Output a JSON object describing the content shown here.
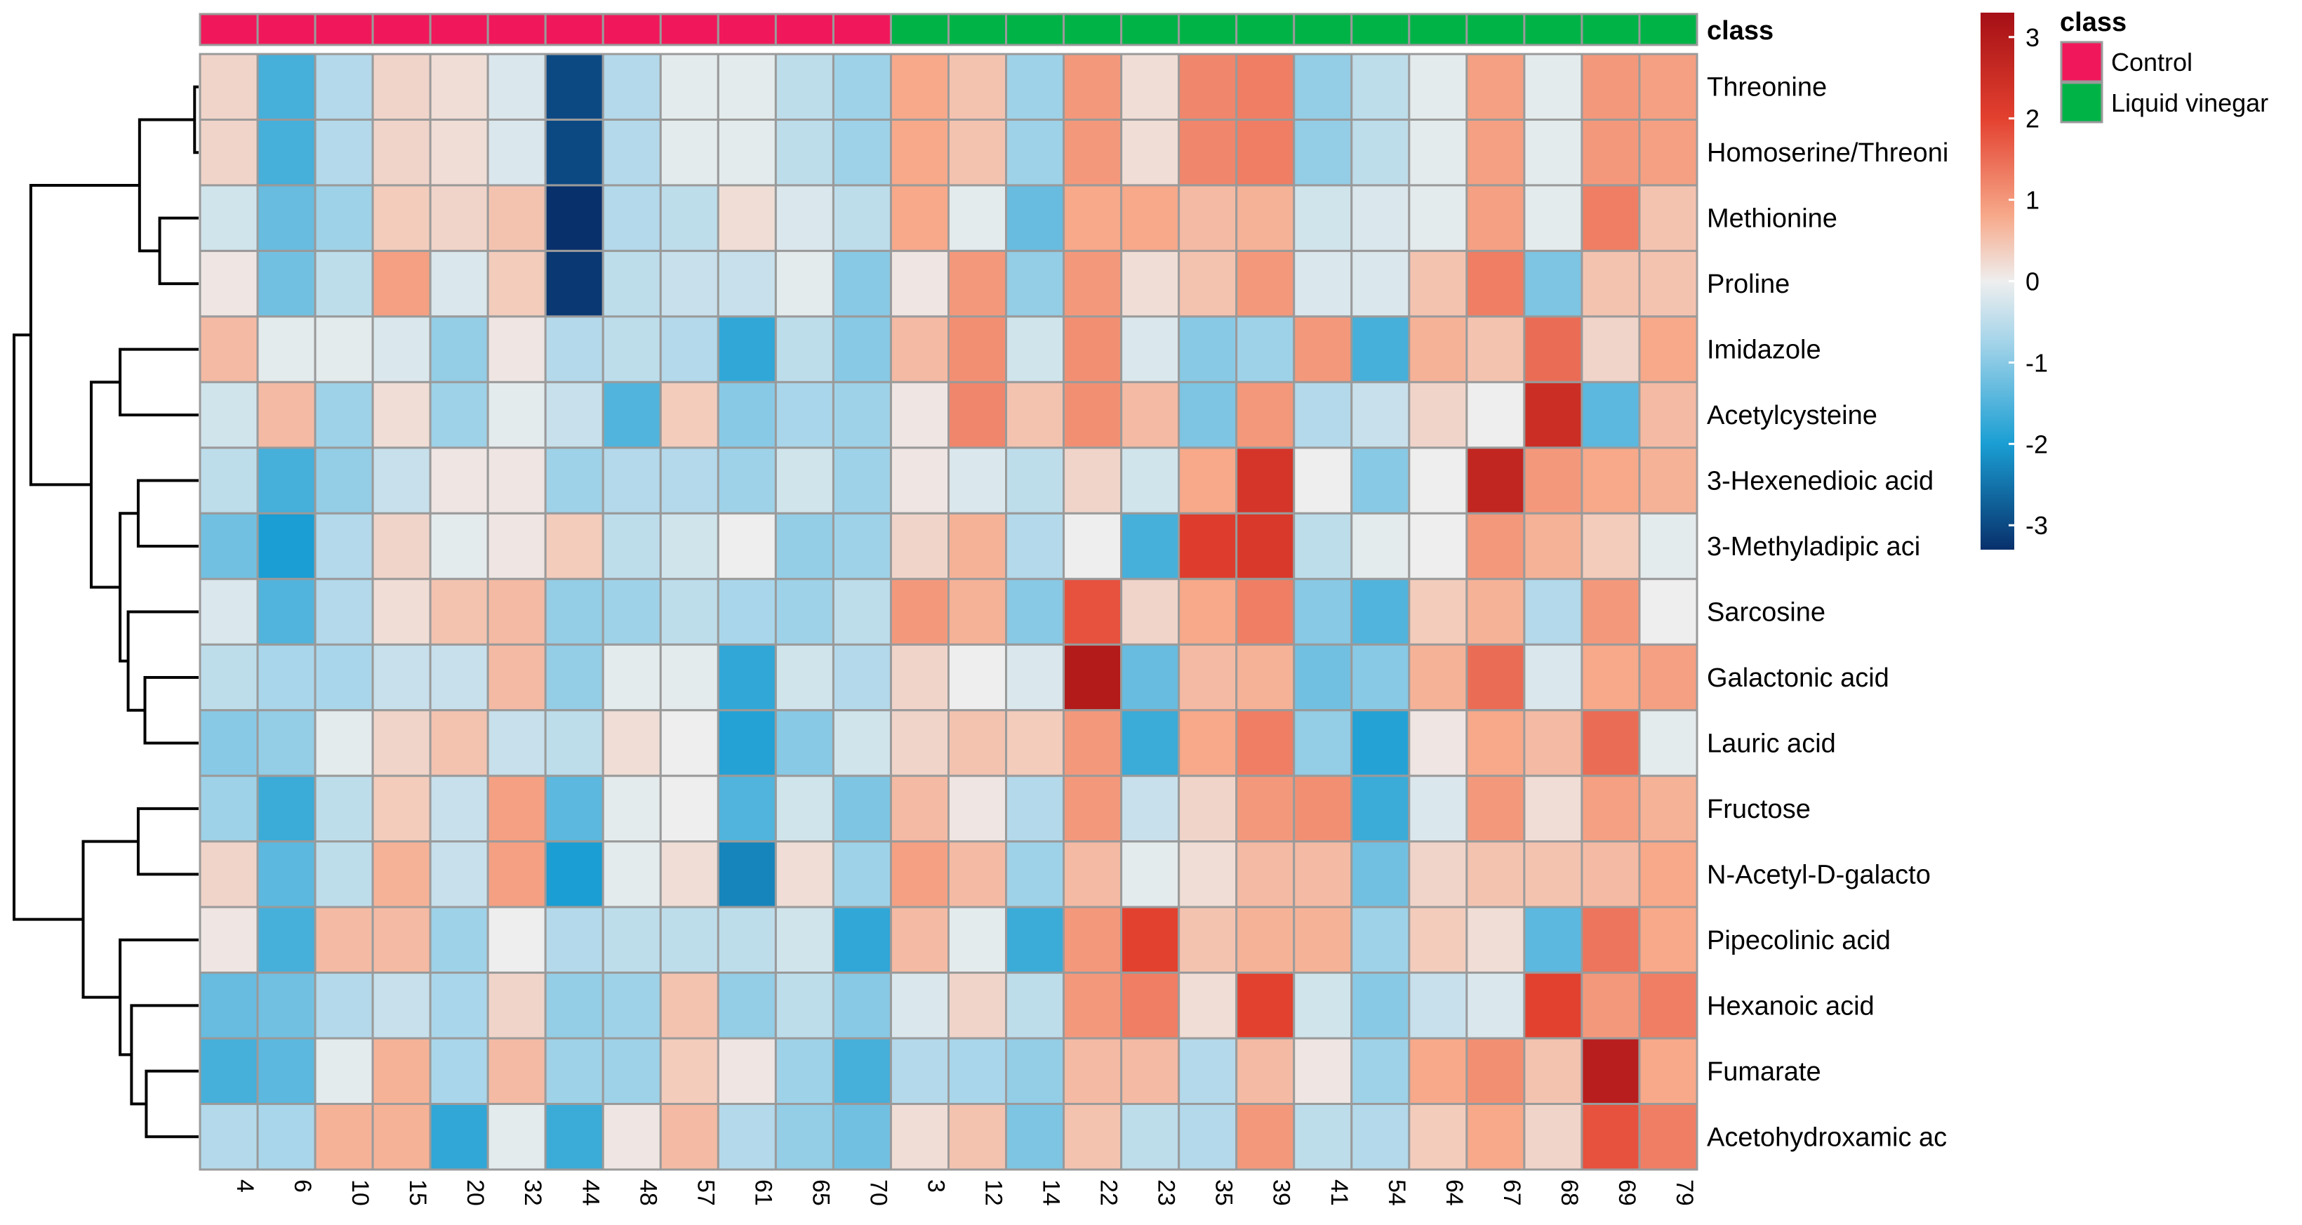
{
  "chart_data": {
    "type": "heatmap",
    "columns": [
      "4",
      "6",
      "10",
      "15",
      "20",
      "32",
      "44",
      "48",
      "57",
      "61",
      "65",
      "70",
      "3",
      "12",
      "14",
      "22",
      "23",
      "35",
      "39",
      "41",
      "54",
      "64",
      "67",
      "68",
      "69",
      "79"
    ],
    "column_classes": [
      "Control",
      "Control",
      "Control",
      "Control",
      "Control",
      "Control",
      "Control",
      "Control",
      "Control",
      "Control",
      "Control",
      "Control",
      "Liquid vinegar",
      "Liquid vinegar",
      "Liquid vinegar",
      "Liquid vinegar",
      "Liquid vinegar",
      "Liquid vinegar",
      "Liquid vinegar",
      "Liquid vinegar",
      "Liquid vinegar",
      "Liquid vinegar",
      "Liquid vinegar",
      "Liquid vinegar",
      "Liquid vinegar",
      "Liquid vinegar"
    ],
    "rows": [
      "Threonine",
      "Homoserine/Threoni",
      "Methionine",
      "Proline",
      "Imidazole",
      "Acetylcysteine",
      "3-Hexenedioic acid",
      "3-Methyladipic aci",
      "Sarcosine",
      "Galactonic acid",
      "Lauric acid",
      "Fructose",
      "N-Acetyl-D-galacto",
      "Pipecolinic acid",
      "Hexanoic acid",
      "Fumarate",
      "Acetohydroxamic ac"
    ],
    "values": [
      [
        0.3,
        -1.6,
        -0.6,
        0.3,
        0.2,
        -0.2,
        -3.0,
        -0.6,
        -0.1,
        -0.1,
        -0.5,
        -0.8,
        0.8,
        0.5,
        -0.8,
        1.0,
        0.2,
        1.2,
        1.3,
        -0.9,
        -0.5,
        -0.1,
        0.9,
        -0.1,
        1.0,
        0.9
      ],
      [
        0.3,
        -1.6,
        -0.6,
        0.3,
        0.2,
        -0.2,
        -3.0,
        -0.6,
        -0.1,
        -0.1,
        -0.5,
        -0.8,
        0.8,
        0.5,
        -0.8,
        1.0,
        0.2,
        1.2,
        1.3,
        -0.9,
        -0.5,
        -0.1,
        0.9,
        -0.1,
        1.0,
        0.9
      ],
      [
        -0.3,
        -1.3,
        -0.8,
        0.4,
        0.3,
        0.5,
        -3.3,
        -0.6,
        -0.5,
        0.2,
        -0.2,
        -0.5,
        0.8,
        -0.1,
        -1.3,
        0.8,
        0.8,
        0.6,
        0.7,
        -0.3,
        -0.2,
        -0.1,
        0.9,
        -0.1,
        1.3,
        0.5
      ],
      [
        0.1,
        -1.2,
        -0.5,
        0.9,
        -0.2,
        0.4,
        -3.2,
        -0.5,
        -0.4,
        -0.4,
        -0.1,
        -1.0,
        0.1,
        1.0,
        -0.9,
        1.0,
        0.2,
        0.5,
        1.0,
        -0.2,
        -0.2,
        0.5,
        1.3,
        -1.1,
        0.5,
        0.5
      ],
      [
        0.6,
        -0.1,
        -0.1,
        -0.2,
        -0.9,
        0.1,
        -0.6,
        -0.5,
        -0.6,
        -1.8,
        -0.5,
        -1.0,
        0.6,
        1.1,
        -0.3,
        1.1,
        -0.2,
        -1.0,
        -0.8,
        1.0,
        -1.6,
        0.7,
        0.5,
        1.5,
        0.3,
        0.8
      ],
      [
        -0.3,
        0.6,
        -0.8,
        0.2,
        -0.8,
        -0.1,
        -0.4,
        -1.5,
        0.4,
        -1.0,
        -0.7,
        -0.8,
        0.1,
        1.2,
        0.5,
        1.1,
        0.6,
        -1.1,
        1.0,
        -0.6,
        -0.4,
        0.3,
        0.0,
        2.5,
        -1.4,
        0.6
      ],
      [
        -0.5,
        -1.6,
        -0.9,
        -0.4,
        0.1,
        0.1,
        -0.8,
        -0.6,
        -0.6,
        -0.8,
        -0.3,
        -0.8,
        0.1,
        -0.2,
        -0.5,
        0.3,
        -0.3,
        0.8,
        2.3,
        0.0,
        -1.0,
        0.0,
        2.7,
        1.0,
        0.8,
        0.7
      ],
      [
        -1.2,
        -2.0,
        -0.6,
        0.3,
        -0.1,
        0.1,
        0.4,
        -0.5,
        -0.3,
        0.0,
        -0.9,
        -0.8,
        0.3,
        0.7,
        -0.6,
        0.0,
        -1.6,
        2.1,
        2.2,
        -0.5,
        -0.1,
        0.0,
        1.0,
        0.7,
        0.4,
        -0.1
      ],
      [
        -0.2,
        -1.5,
        -0.6,
        0.2,
        0.5,
        0.6,
        -0.9,
        -0.8,
        -0.5,
        -0.7,
        -0.8,
        -0.5,
        1.0,
        0.7,
        -1.0,
        1.8,
        0.3,
        0.8,
        1.3,
        -1.0,
        -1.5,
        0.4,
        0.7,
        -0.6,
        1.0,
        0.0
      ],
      [
        -0.5,
        -0.7,
        -0.7,
        -0.4,
        -0.4,
        0.6,
        -0.9,
        -0.1,
        -0.1,
        -1.8,
        -0.3,
        -0.6,
        0.3,
        0.0,
        -0.2,
        3.0,
        -1.3,
        0.6,
        0.7,
        -1.2,
        -1.0,
        0.7,
        1.5,
        -0.2,
        0.8,
        0.9
      ],
      [
        -1.0,
        -0.9,
        -0.1,
        0.3,
        0.5,
        -0.4,
        -0.5,
        0.2,
        0.0,
        -1.9,
        -1.0,
        -0.3,
        0.3,
        0.5,
        0.4,
        1.0,
        -1.7,
        0.8,
        1.3,
        -0.9,
        -1.9,
        0.1,
        0.8,
        0.6,
        1.5,
        -0.1
      ],
      [
        -0.8,
        -1.7,
        -0.5,
        0.4,
        -0.4,
        0.9,
        -1.4,
        -0.1,
        0.0,
        -1.5,
        -0.3,
        -1.1,
        0.6,
        0.1,
        -0.6,
        1.0,
        -0.4,
        0.3,
        1.0,
        1.1,
        -1.7,
        -0.2,
        1.0,
        0.2,
        0.9,
        0.7
      ],
      [
        0.3,
        -1.4,
        -0.5,
        0.7,
        -0.4,
        0.9,
        -2.0,
        -0.1,
        0.2,
        -2.3,
        0.2,
        -0.8,
        0.9,
        0.6,
        -0.8,
        0.6,
        -0.1,
        0.2,
        0.6,
        0.6,
        -1.2,
        0.3,
        0.5,
        0.5,
        0.6,
        0.8
      ],
      [
        0.1,
        -1.6,
        0.6,
        0.6,
        -0.8,
        0.0,
        -0.6,
        -0.5,
        -0.5,
        -0.5,
        -0.3,
        -1.8,
        0.6,
        -0.1,
        -1.7,
        1.0,
        2.0,
        0.5,
        0.7,
        0.7,
        -0.8,
        0.4,
        0.2,
        -1.4,
        1.4,
        0.8
      ],
      [
        -1.3,
        -1.2,
        -0.6,
        -0.4,
        -0.7,
        0.3,
        -0.9,
        -0.8,
        0.5,
        -0.9,
        -0.5,
        -1.0,
        -0.2,
        0.3,
        -0.5,
        1.0,
        1.3,
        0.2,
        2.0,
        -0.3,
        -1.0,
        -0.4,
        -0.2,
        2.0,
        1.0,
        1.3
      ],
      [
        -1.6,
        -1.4,
        -0.1,
        0.7,
        -0.7,
        0.6,
        -0.8,
        -0.8,
        0.4,
        0.1,
        -0.8,
        -1.6,
        -0.6,
        -0.7,
        -0.9,
        0.6,
        0.6,
        -0.6,
        0.6,
        0.1,
        -0.8,
        0.8,
        1.1,
        0.5,
        2.9,
        0.8
      ],
      [
        -0.6,
        -0.7,
        0.7,
        0.7,
        -1.8,
        -0.1,
        -1.7,
        0.1,
        0.6,
        -0.6,
        -0.9,
        -1.2,
        0.2,
        0.5,
        -1.1,
        0.5,
        -0.5,
        -0.6,
        1.0,
        -0.5,
        -0.6,
        0.4,
        0.8,
        0.3,
        1.8,
        1.3
      ]
    ],
    "color_scale": {
      "min": -3.3,
      "max": 3.3,
      "stops": [
        {
          "value": -3.3,
          "color": "#08306b"
        },
        {
          "value": -2.0,
          "color": "#1a9ed3"
        },
        {
          "value": -0.7,
          "color": "#a9d6ea"
        },
        {
          "value": 0.0,
          "color": "#eeeeee"
        },
        {
          "value": 0.8,
          "color": "#f7a98a"
        },
        {
          "value": 2.0,
          "color": "#e3412f"
        },
        {
          "value": 3.3,
          "color": "#a50f15"
        }
      ],
      "ticks": [
        3,
        2,
        1,
        0,
        -1,
        -2,
        -3
      ]
    },
    "class_annotation": {
      "title": "class",
      "label": "class",
      "legend": [
        {
          "name": "Control",
          "color": "#f0185a"
        },
        {
          "name": "Liquid vinegar",
          "color": "#00b347"
        }
      ]
    },
    "row_dendrogram": [
      {
        "merge": [
          0,
          1
        ],
        "height": 0.06
      },
      {
        "merge": [
          2,
          3
        ],
        "height": 0.58
      },
      {
        "merge": [
          "n0",
          "n1"
        ],
        "height": 0.88
      },
      {
        "merge": [
          4,
          5
        ],
        "height": 1.17
      },
      {
        "merge": [
          6,
          7
        ],
        "height": 0.9
      },
      {
        "merge": [
          9,
          10
        ],
        "height": 0.8
      },
      {
        "merge": [
          8,
          "n5"
        ],
        "height": 1.05
      },
      {
        "merge": [
          "n4",
          "n6"
        ],
        "height": 1.17
      },
      {
        "merge": [
          "n3",
          "n7"
        ],
        "height": 1.6
      },
      {
        "merge": [
          "n2",
          "n8"
        ],
        "height": 2.5
      },
      {
        "merge": [
          11,
          12
        ],
        "height": 0.9
      },
      {
        "merge": [
          15,
          16
        ],
        "height": 0.78
      },
      {
        "merge": [
          14,
          "n11"
        ],
        "height": 1.0
      },
      {
        "merge": [
          13,
          "n12"
        ],
        "height": 1.17
      },
      {
        "merge": [
          "n10",
          "n13"
        ],
        "height": 1.72
      },
      {
        "merge": [
          "n9",
          "n14"
        ],
        "height": 2.75
      }
    ]
  }
}
